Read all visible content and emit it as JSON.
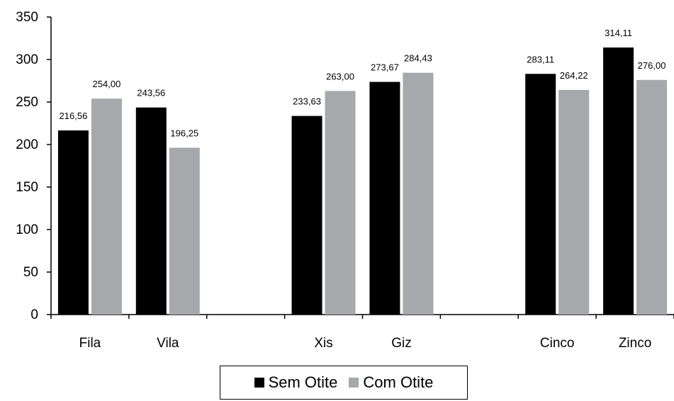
{
  "chart_data": {
    "type": "bar",
    "categories": [
      "Fila",
      "Vila",
      "",
      "Xis",
      "Giz",
      "",
      "Cinco",
      "Zinco"
    ],
    "series": [
      {
        "name": "Sem Otite",
        "color": "#000000",
        "values": [
          216.56,
          243.56,
          null,
          233.63,
          273.67,
          null,
          283.11,
          314.11
        ],
        "labels": [
          "216,56",
          "243,56",
          "",
          "233,63",
          "273,67",
          "",
          "283,11",
          "314,11"
        ]
      },
      {
        "name": "Com Otite",
        "color": "#a6a8ab",
        "values": [
          254.0,
          196.25,
          null,
          263.0,
          284.43,
          null,
          264.22,
          276.0
        ],
        "labels": [
          "254,00",
          "196,25",
          "",
          "263,00",
          "284,43",
          "",
          "264,22",
          "276,00"
        ]
      }
    ],
    "ylim": [
      0,
      350
    ],
    "yticks": [
      0,
      50,
      100,
      150,
      200,
      250,
      300,
      350
    ],
    "grid": false,
    "legend_position": "bottom"
  }
}
